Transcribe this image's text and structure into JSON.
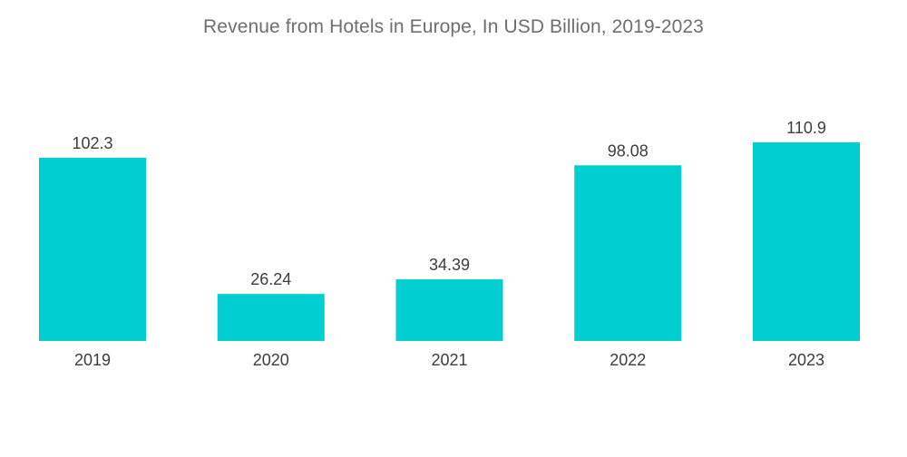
{
  "chart_data": {
    "type": "bar",
    "title": "Revenue from Hotels in Europe, In USD Billion, 2019-2023",
    "categories": [
      "2019",
      "2020",
      "2021",
      "2022",
      "2023"
    ],
    "values": [
      102.3,
      26.24,
      34.39,
      98.08,
      110.9
    ],
    "data_labels": [
      "102.3",
      "26.24",
      "34.39",
      "98.08",
      "110.9"
    ],
    "xlabel": "",
    "ylabel": "",
    "ylim": [
      0,
      110.9
    ],
    "grid": false,
    "legend": "none",
    "bar_color": "#00CED1"
  }
}
